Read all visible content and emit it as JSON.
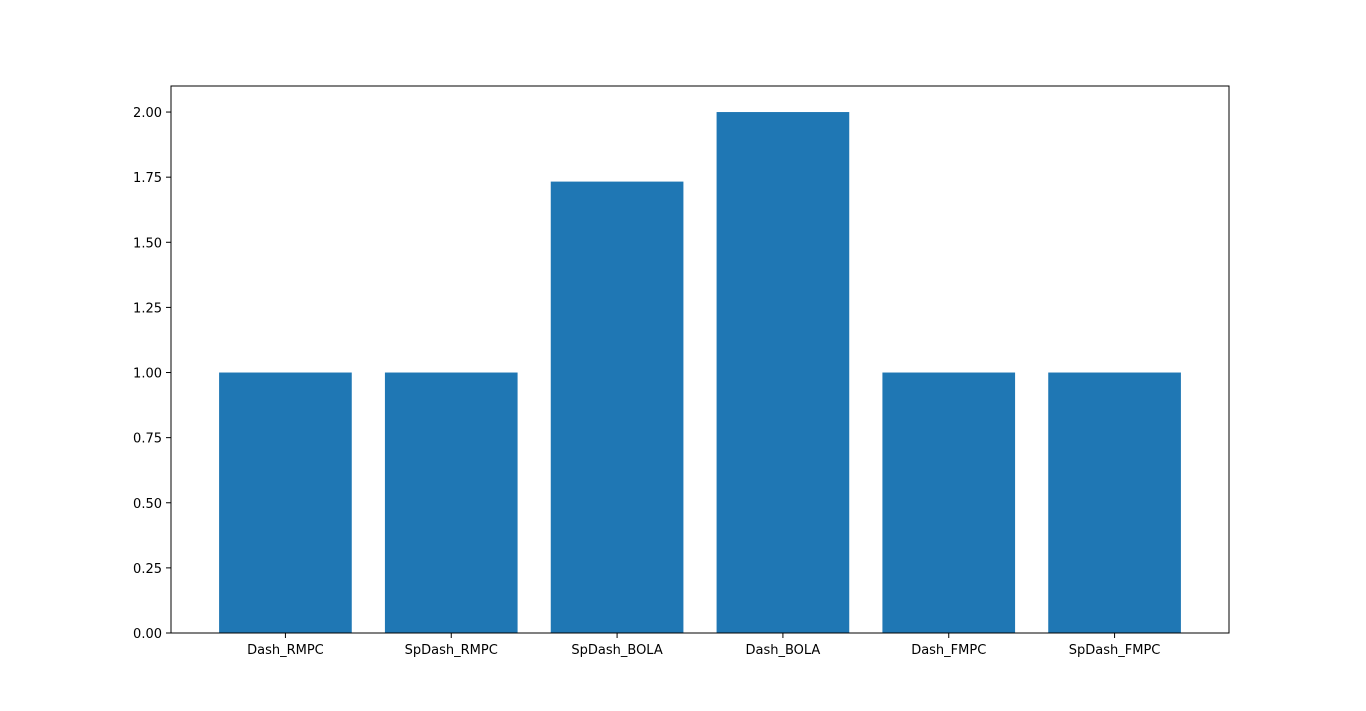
{
  "chart_data": {
    "type": "bar",
    "title": "",
    "xlabel": "",
    "ylabel": "",
    "categories": [
      "Dash_RMPC",
      "SpDash_RMPC",
      "SpDash_BOLA",
      "Dash_BOLA",
      "Dash_FMPC",
      "SpDash_FMPC"
    ],
    "values": [
      1.0,
      1.0,
      1.733,
      2.0,
      1.0,
      1.0
    ],
    "ylim": [
      0,
      2.1
    ],
    "yticks": [
      "0.00",
      "0.25",
      "0.50",
      "0.75",
      "1.00",
      "1.25",
      "1.50",
      "1.75",
      "2.00"
    ],
    "grid": false,
    "legend": "none",
    "bar_color": "#1f77b4"
  }
}
